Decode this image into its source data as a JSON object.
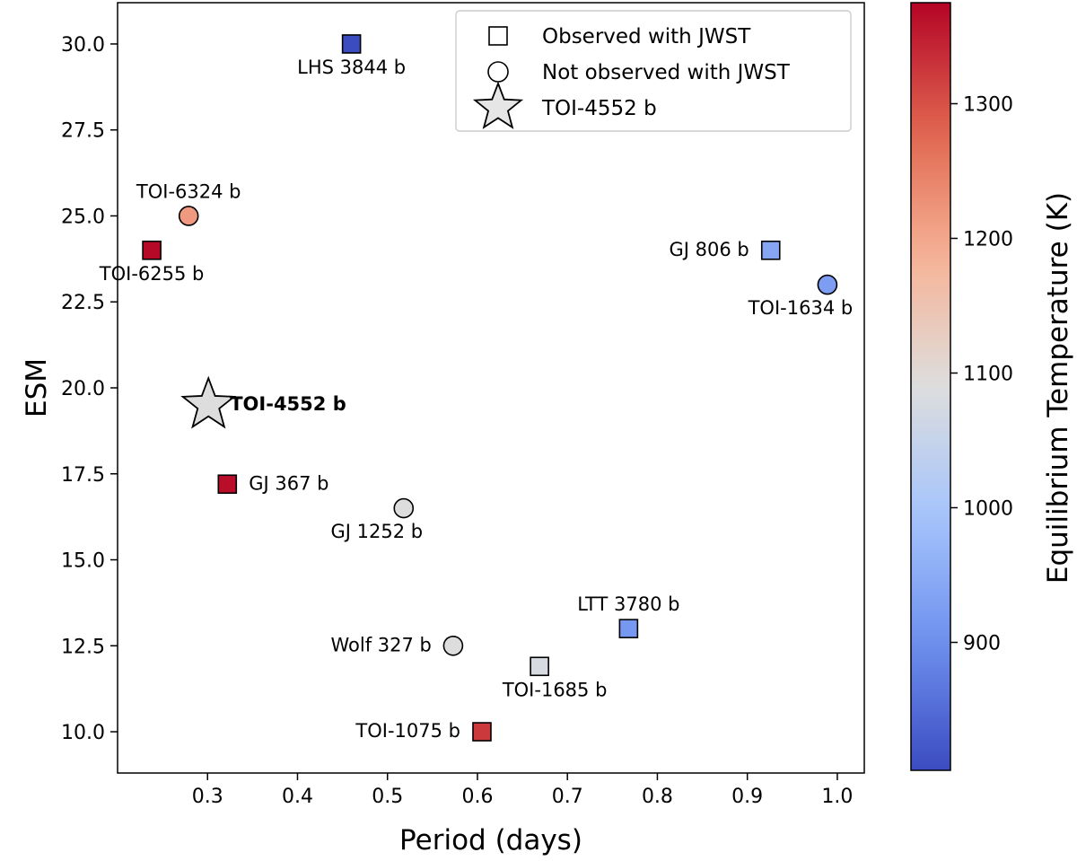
{
  "chart_data": {
    "type": "scatter",
    "xlabel": "Period (days)",
    "ylabel": "ESM",
    "xlim": [
      0.2,
      1.03
    ],
    "ylim": [
      8.8,
      31.2
    ],
    "xticks": [
      0.3,
      0.4,
      0.5,
      0.6,
      0.7,
      0.8,
      0.9,
      1.0
    ],
    "xtick_labels": [
      "0.3",
      "0.4",
      "0.5",
      "0.6",
      "0.7",
      "0.8",
      "0.9",
      "1.0"
    ],
    "yticks": [
      10.0,
      12.5,
      15.0,
      17.5,
      20.0,
      22.5,
      25.0,
      27.5,
      30.0
    ],
    "ytick_labels": [
      "10.0",
      "12.5",
      "15.0",
      "17.5",
      "20.0",
      "22.5",
      "25.0",
      "27.5",
      "30.0"
    ],
    "grid": false,
    "legend_position": "top-right",
    "legend": [
      {
        "marker": "square",
        "label": "Observed with JWST"
      },
      {
        "marker": "circle",
        "label": "Not observed with JWST"
      },
      {
        "marker": "star",
        "label": "TOI-4552 b"
      }
    ],
    "colorbar": {
      "label": "Equilibrium Temperature (K)",
      "range": [
        805,
        1375
      ],
      "ticks": [
        900,
        1000,
        1100,
        1200,
        1300
      ],
      "tick_labels": [
        "900",
        "1000",
        "1100",
        "1200",
        "1300"
      ],
      "colormap": "coolwarm",
      "colors": [
        "#3b4cc0",
        "#6e90ee",
        "#a6c4fc",
        "#dddddd",
        "#f6b497",
        "#e0654f",
        "#b40426"
      ]
    },
    "points": [
      {
        "name": "LHS 3844 b",
        "x": 0.46,
        "y": 30.0,
        "teq": 805,
        "marker": "square",
        "label_pos": "below"
      },
      {
        "name": "TOI-6324 b",
        "x": 0.279,
        "y": 25.0,
        "teq": 1216,
        "marker": "circle",
        "label_pos": "above"
      },
      {
        "name": "TOI-6255 b",
        "x": 0.238,
        "y": 24.0,
        "teq": 1370,
        "marker": "square",
        "label_pos": "below"
      },
      {
        "name": "GJ 806 b",
        "x": 0.926,
        "y": 24.0,
        "teq": 940,
        "marker": "square",
        "label_pos": "left"
      },
      {
        "name": "TOI-1634 b",
        "x": 0.989,
        "y": 23.0,
        "teq": 924,
        "marker": "circle",
        "label_pos": "below-left"
      },
      {
        "name": "TOI-4552 b",
        "x": 0.301,
        "y": 19.5,
        "teq": 1090,
        "marker": "star",
        "label_pos": "right",
        "bold": true
      },
      {
        "name": "GJ 367 b",
        "x": 0.322,
        "y": 17.2,
        "teq": 1365,
        "marker": "square",
        "label_pos": "right"
      },
      {
        "name": "GJ 1252 b",
        "x": 0.518,
        "y": 16.5,
        "teq": 1090,
        "marker": "circle",
        "label_pos": "below-left"
      },
      {
        "name": "LTT 3780 b",
        "x": 0.768,
        "y": 13.0,
        "teq": 915,
        "marker": "square",
        "label_pos": "above"
      },
      {
        "name": "Wolf 327 b",
        "x": 0.573,
        "y": 12.5,
        "teq": 1090,
        "marker": "circle",
        "label_pos": "left"
      },
      {
        "name": "TOI-1685 b",
        "x": 0.669,
        "y": 11.9,
        "teq": 1080,
        "marker": "square",
        "label_pos": "below-right"
      },
      {
        "name": "TOI-1075 b",
        "x": 0.605,
        "y": 10.0,
        "teq": 1323,
        "marker": "square",
        "label_pos": "left"
      }
    ]
  }
}
